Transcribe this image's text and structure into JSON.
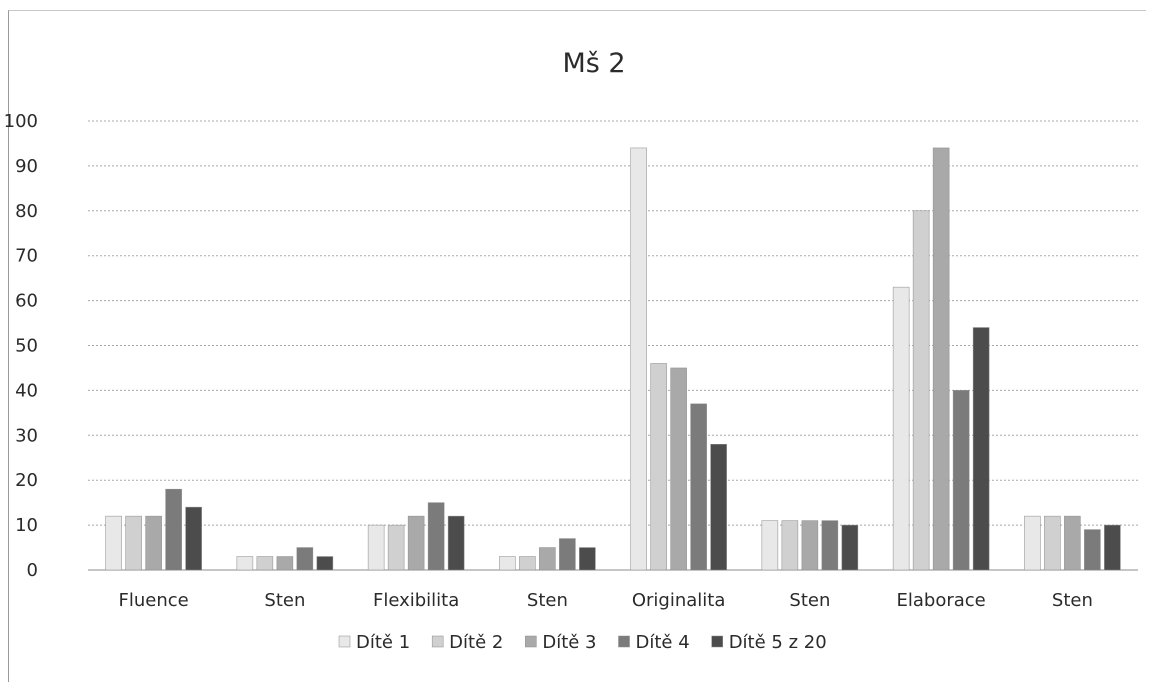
{
  "chart_data": {
    "type": "bar",
    "title": "Mš 2",
    "xlabel": "",
    "ylabel": "",
    "ylim": [
      0,
      100
    ],
    "yticks": [
      0,
      10,
      20,
      30,
      40,
      50,
      60,
      70,
      80,
      90,
      100
    ],
    "grid": true,
    "legend_position": "bottom",
    "categories": [
      "Fluence",
      "Sten",
      "Flexibilita",
      "Sten",
      "Originalita",
      "Sten",
      "Elaborace",
      "Sten"
    ],
    "series": [
      {
        "name": "Dítě 1",
        "color": "#e8e8e8",
        "values": [
          12,
          3,
          10,
          3,
          94,
          11,
          63,
          12
        ]
      },
      {
        "name": "Dítě 2",
        "color": "#d0d0d0",
        "values": [
          12,
          3,
          10,
          3,
          46,
          11,
          80,
          12
        ]
      },
      {
        "name": "Dítě 3",
        "color": "#a9a9a9",
        "values": [
          12,
          3,
          12,
          5,
          45,
          11,
          94,
          12
        ]
      },
      {
        "name": "Dítě 4",
        "color": "#7b7b7b",
        "values": [
          18,
          5,
          15,
          7,
          37,
          11,
          40,
          9
        ]
      },
      {
        "name": "Dítě 5 z 20",
        "color": "#4c4c4c",
        "values": [
          14,
          3,
          12,
          5,
          28,
          10,
          54,
          10
        ]
      }
    ]
  }
}
